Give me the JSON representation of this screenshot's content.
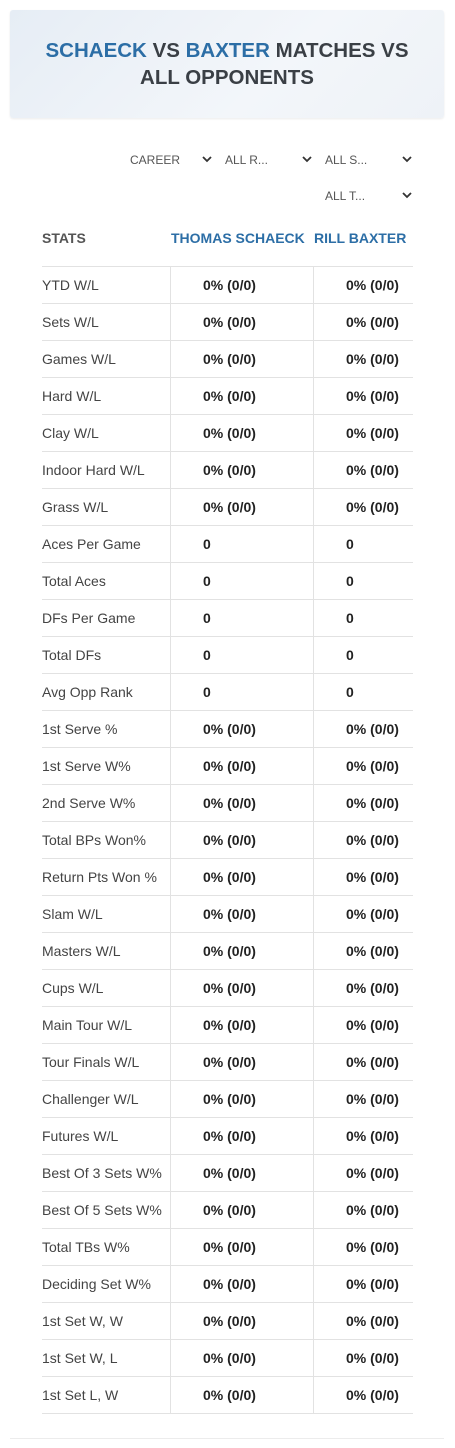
{
  "header": {
    "title": [
      "SCHAECK",
      "VS",
      "BAXTER",
      "MATCHES VS ALL OPPONENTS"
    ]
  },
  "filters": [
    "CAREER",
    "ALL R...",
    "ALL S...",
    "ALL T..."
  ],
  "table": {
    "columns": [
      "STATS",
      "THOMAS SCHAECK",
      "RILL BAXTER"
    ],
    "rows": [
      [
        "YTD W/L",
        "0% (0/0)",
        "0% (0/0)"
      ],
      [
        "Sets W/L",
        "0% (0/0)",
        "0% (0/0)"
      ],
      [
        "Games W/L",
        "0% (0/0)",
        "0% (0/0)"
      ],
      [
        "Hard W/L",
        "0% (0/0)",
        "0% (0/0)"
      ],
      [
        "Clay W/L",
        "0% (0/0)",
        "0% (0/0)"
      ],
      [
        "Indoor Hard W/L",
        "0% (0/0)",
        "0% (0/0)"
      ],
      [
        "Grass W/L",
        "0% (0/0)",
        "0% (0/0)"
      ],
      [
        "Aces Per Game",
        0,
        0
      ],
      [
        "Total Aces",
        0,
        0
      ],
      [
        "DFs Per Game",
        0,
        0
      ],
      [
        "Total DFs",
        0,
        0
      ],
      [
        "Avg Opp Rank",
        0,
        0
      ],
      [
        "1st Serve %",
        "0% (0/0)",
        "0% (0/0)"
      ],
      [
        "1st Serve W%",
        "0% (0/0)",
        "0% (0/0)"
      ],
      [
        "2nd Serve W%",
        "0% (0/0)",
        "0% (0/0)"
      ],
      [
        "Total BPs Won%",
        "0% (0/0)",
        "0% (0/0)"
      ],
      [
        "Return Pts Won %",
        "0% (0/0)",
        "0% (0/0)"
      ],
      [
        "Slam W/L",
        "0% (0/0)",
        "0% (0/0)"
      ],
      [
        "Masters W/L",
        "0% (0/0)",
        "0% (0/0)"
      ],
      [
        "Cups W/L",
        "0% (0/0)",
        "0% (0/0)"
      ],
      [
        "Main Tour W/L",
        "0% (0/0)",
        "0% (0/0)"
      ],
      [
        "Tour Finals W/L",
        "0% (0/0)",
        "0% (0/0)"
      ],
      [
        "Challenger W/L",
        "0% (0/0)",
        "0% (0/0)"
      ],
      [
        "Futures W/L",
        "0% (0/0)",
        "0% (0/0)"
      ],
      [
        "Best Of 3 Sets W%",
        "0% (0/0)",
        "0% (0/0)"
      ],
      [
        "Best Of 5 Sets W%",
        "0% (0/0)",
        "0% (0/0)"
      ],
      [
        "Total TBs W%",
        "0% (0/0)",
        "0% (0/0)"
      ],
      [
        "Deciding Set W%",
        "0% (0/0)",
        "0% (0/0)"
      ],
      [
        "1st Set W, W",
        "0% (0/0)",
        "0% (0/0)"
      ],
      [
        "1st Set W, L",
        "0% (0/0)",
        "0% (0/0)"
      ],
      [
        "1st Set L, W",
        "0% (0/0)",
        "0% (0/0)"
      ]
    ]
  }
}
